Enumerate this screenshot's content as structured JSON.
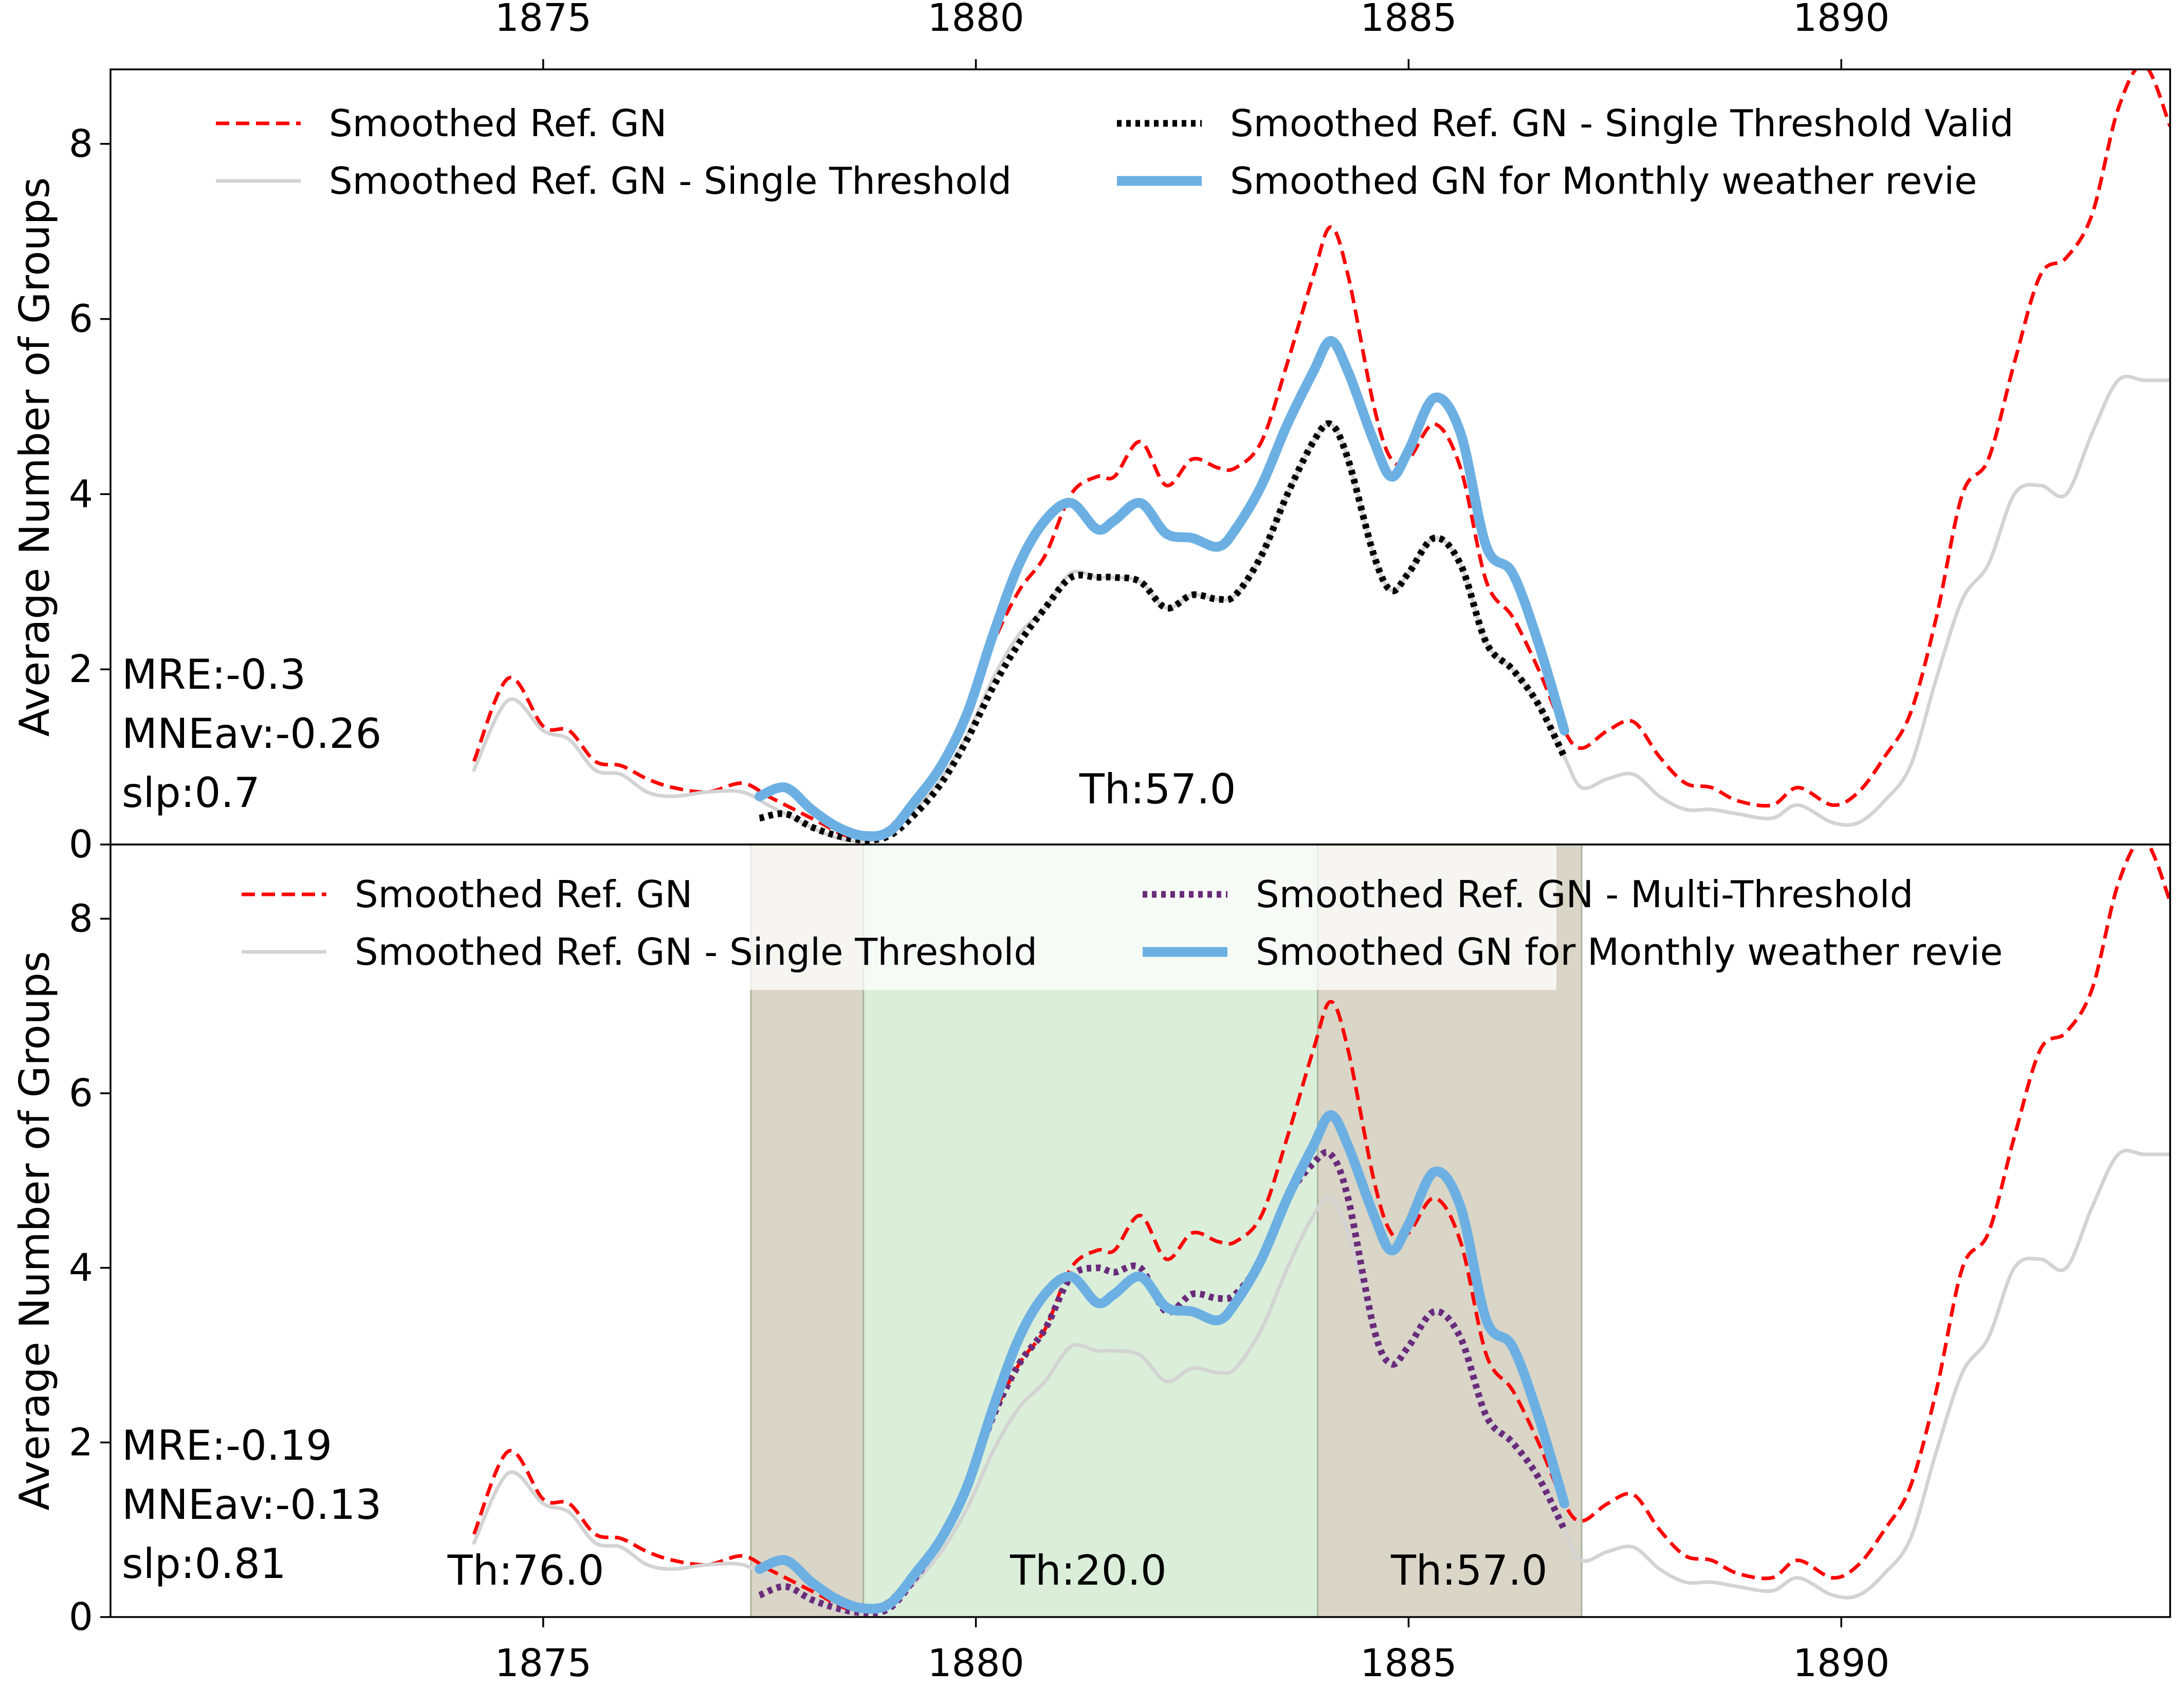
{
  "chart_data": [
    {
      "type": "line",
      "panel": "top",
      "title": "",
      "xlabel": "",
      "ylabel": "Average Number of Groups",
      "xlim": [
        1870.0,
        1893.8
      ],
      "ylim": [
        0,
        8.85
      ],
      "x_ticks": [
        1875,
        1880,
        1885,
        1890
      ],
      "y_ticks": [
        0,
        2,
        4,
        6,
        8
      ],
      "x_tick_labels": [
        "1875",
        "1880",
        "1885",
        "1890"
      ],
      "y_tick_labels": [
        "0",
        "2",
        "4",
        "6",
        "8"
      ],
      "x_ticks_position": "top",
      "legend_location": "top",
      "grid": false,
      "annotations": {
        "stats": [
          "MRE:-0.3",
          "MNEav:-0.26",
          "slp:0.7"
        ],
        "thresholds": [
          {
            "text": "Th:57.0",
            "x": 1882.1
          }
        ]
      },
      "shaded_regions": [],
      "series": [
        {
          "name": "Smoothed Ref. GN",
          "color": "#ff0000",
          "style": "dashed",
          "x": [
            1874.2,
            1874.6,
            1875.0,
            1875.3,
            1875.6,
            1875.9,
            1876.2,
            1876.5,
            1876.9,
            1877.3,
            1877.6,
            1877.9,
            1878.2,
            1878.5,
            1878.8,
            1879.0,
            1879.3,
            1879.6,
            1879.9,
            1880.2,
            1880.5,
            1880.8,
            1881.1,
            1881.4,
            1881.6,
            1881.9,
            1882.2,
            1882.5,
            1882.8,
            1883.0,
            1883.3,
            1883.6,
            1883.9,
            1884.1,
            1884.3,
            1884.6,
            1884.8,
            1885.0,
            1885.3,
            1885.6,
            1885.9,
            1886.2,
            1886.5,
            1886.8,
            1887.0,
            1887.3,
            1887.6,
            1887.9,
            1888.2,
            1888.5,
            1888.8,
            1889.2,
            1889.5,
            1889.9,
            1890.2,
            1890.5,
            1890.8,
            1891.1,
            1891.4,
            1891.7,
            1892.0,
            1892.3,
            1892.6,
            1892.9,
            1893.2,
            1893.5,
            1893.8
          ],
          "y": [
            0.95,
            1.9,
            1.35,
            1.3,
            0.95,
            0.9,
            0.75,
            0.65,
            0.6,
            0.7,
            0.55,
            0.4,
            0.25,
            0.1,
            0.1,
            0.2,
            0.5,
            0.9,
            1.5,
            2.3,
            2.9,
            3.3,
            4.0,
            4.2,
            4.2,
            4.6,
            4.1,
            4.4,
            4.3,
            4.3,
            4.6,
            5.5,
            6.5,
            7.05,
            6.5,
            5.0,
            4.4,
            4.4,
            4.8,
            4.3,
            3.0,
            2.6,
            2.0,
            1.3,
            1.1,
            1.3,
            1.4,
            1.0,
            0.7,
            0.65,
            0.5,
            0.45,
            0.65,
            0.45,
            0.6,
            1.0,
            1.5,
            2.6,
            4.0,
            4.4,
            5.5,
            6.5,
            6.7,
            7.2,
            8.4,
            8.9,
            8.2
          ]
        },
        {
          "name": "Smoothed Ref. GN - Single Threshold",
          "color": "#d3d3d3",
          "style": "solid",
          "x": [
            1874.2,
            1874.6,
            1875.0,
            1875.3,
            1875.6,
            1875.9,
            1876.2,
            1876.5,
            1876.9,
            1877.3,
            1877.6,
            1877.9,
            1878.2,
            1878.5,
            1878.8,
            1879.0,
            1879.3,
            1879.6,
            1879.9,
            1880.2,
            1880.5,
            1880.8,
            1881.1,
            1881.4,
            1881.6,
            1881.9,
            1882.2,
            1882.5,
            1882.8,
            1883.0,
            1883.3,
            1883.6,
            1883.9,
            1884.1,
            1884.3,
            1884.6,
            1884.8,
            1885.0,
            1885.3,
            1885.6,
            1885.9,
            1886.2,
            1886.5,
            1886.8,
            1887.0,
            1887.3,
            1887.6,
            1887.9,
            1888.2,
            1888.5,
            1888.8,
            1889.2,
            1889.5,
            1889.9,
            1890.2,
            1890.5,
            1890.8,
            1891.1,
            1891.4,
            1891.7,
            1892.0,
            1892.3,
            1892.6,
            1892.9,
            1893.2,
            1893.5,
            1893.8
          ],
          "y": [
            0.85,
            1.65,
            1.3,
            1.2,
            0.85,
            0.8,
            0.6,
            0.55,
            0.6,
            0.6,
            0.45,
            0.3,
            0.15,
            0.05,
            0.05,
            0.15,
            0.4,
            0.75,
            1.25,
            1.9,
            2.4,
            2.7,
            3.1,
            3.05,
            3.05,
            3.0,
            2.7,
            2.85,
            2.8,
            2.85,
            3.3,
            4.0,
            4.6,
            4.8,
            4.4,
            3.3,
            2.9,
            3.1,
            3.5,
            3.2,
            2.3,
            2.0,
            1.6,
            1.0,
            0.65,
            0.75,
            0.8,
            0.55,
            0.4,
            0.4,
            0.35,
            0.3,
            0.45,
            0.25,
            0.25,
            0.5,
            0.9,
            1.9,
            2.8,
            3.2,
            4.0,
            4.1,
            4.0,
            4.7,
            5.3,
            5.3,
            5.3
          ]
        },
        {
          "name": "Smoothed Ref. GN - Single Threshold Valid",
          "color": "#000000",
          "style": "dotted",
          "x": [
            1877.5,
            1877.8,
            1878.1,
            1878.4,
            1878.7,
            1879.0,
            1879.3,
            1879.6,
            1879.9,
            1880.2,
            1880.5,
            1880.8,
            1881.1,
            1881.4,
            1881.6,
            1881.9,
            1882.2,
            1882.5,
            1882.8,
            1883.0,
            1883.3,
            1883.6,
            1883.9,
            1884.1,
            1884.3,
            1884.6,
            1884.8,
            1885.0,
            1885.3,
            1885.6,
            1885.9,
            1886.2,
            1886.5,
            1886.8
          ],
          "y": [
            0.3,
            0.35,
            0.2,
            0.1,
            0.05,
            0.1,
            0.35,
            0.7,
            1.2,
            1.8,
            2.3,
            2.7,
            3.05,
            3.05,
            3.05,
            3.0,
            2.7,
            2.85,
            2.8,
            2.85,
            3.3,
            4.0,
            4.6,
            4.8,
            4.4,
            3.3,
            2.9,
            3.1,
            3.5,
            3.2,
            2.3,
            2.0,
            1.6,
            1.0
          ]
        },
        {
          "name": "Smoothed GN for Monthly weather revie",
          "color": "#6cb0e3",
          "style": "solid-thick",
          "x": [
            1877.5,
            1877.8,
            1878.1,
            1878.4,
            1878.7,
            1879.0,
            1879.3,
            1879.6,
            1879.9,
            1880.2,
            1880.5,
            1880.8,
            1881.1,
            1881.4,
            1881.6,
            1881.9,
            1882.2,
            1882.5,
            1882.8,
            1883.0,
            1883.3,
            1883.6,
            1883.9,
            1884.1,
            1884.3,
            1884.6,
            1884.8,
            1885.0,
            1885.3,
            1885.6,
            1885.9,
            1886.2,
            1886.5,
            1886.8
          ],
          "y": [
            0.55,
            0.65,
            0.4,
            0.2,
            0.1,
            0.15,
            0.5,
            0.9,
            1.5,
            2.4,
            3.2,
            3.7,
            3.9,
            3.6,
            3.7,
            3.9,
            3.55,
            3.5,
            3.4,
            3.6,
            4.1,
            4.8,
            5.4,
            5.75,
            5.4,
            4.6,
            4.2,
            4.5,
            5.1,
            4.7,
            3.4,
            3.1,
            2.3,
            1.3
          ]
        }
      ]
    },
    {
      "type": "line",
      "panel": "bottom",
      "title": "",
      "xlabel": "",
      "ylabel": "Average Number of Groups",
      "xlim": [
        1870.0,
        1893.8
      ],
      "ylim": [
        0,
        8.85
      ],
      "x_ticks": [
        1875,
        1880,
        1885,
        1890
      ],
      "y_ticks": [
        0,
        2,
        4,
        6,
        8
      ],
      "x_tick_labels": [
        "1875",
        "1880",
        "1885",
        "1890"
      ],
      "y_tick_labels": [
        "0",
        "2",
        "4",
        "6",
        "8"
      ],
      "x_ticks_position": "bottom",
      "legend_location": "top",
      "grid": false,
      "annotations": {
        "stats": [
          "MRE:-0.19",
          "MNEav:-0.13",
          "slp:0.81"
        ],
        "thresholds": [
          {
            "text": "Th:76.0",
            "x": 1874.8
          },
          {
            "text": "Th:20.0",
            "x": 1881.3
          },
          {
            "text": "Th:57.0",
            "x": 1885.7
          }
        ]
      },
      "shaded_regions": [
        {
          "x0": 1877.4,
          "x1": 1878.7,
          "color": "#d9d5c7"
        },
        {
          "x0": 1878.7,
          "x1": 1883.95,
          "color": "#daeeda"
        },
        {
          "x0": 1883.95,
          "x1": 1887.0,
          "color": "#d9d5c7"
        }
      ],
      "series": [
        {
          "name": "Smoothed Ref. GN",
          "color": "#ff0000",
          "style": "dashed",
          "x": [
            1874.2,
            1874.6,
            1875.0,
            1875.3,
            1875.6,
            1875.9,
            1876.2,
            1876.5,
            1876.9,
            1877.3,
            1877.6,
            1877.9,
            1878.2,
            1878.5,
            1878.8,
            1879.0,
            1879.3,
            1879.6,
            1879.9,
            1880.2,
            1880.5,
            1880.8,
            1881.1,
            1881.4,
            1881.6,
            1881.9,
            1882.2,
            1882.5,
            1882.8,
            1883.0,
            1883.3,
            1883.6,
            1883.9,
            1884.1,
            1884.3,
            1884.6,
            1884.8,
            1885.0,
            1885.3,
            1885.6,
            1885.9,
            1886.2,
            1886.5,
            1886.8,
            1887.0,
            1887.3,
            1887.6,
            1887.9,
            1888.2,
            1888.5,
            1888.8,
            1889.2,
            1889.5,
            1889.9,
            1890.2,
            1890.5,
            1890.8,
            1891.1,
            1891.4,
            1891.7,
            1892.0,
            1892.3,
            1892.6,
            1892.9,
            1893.2,
            1893.5,
            1893.8
          ],
          "y": [
            0.95,
            1.9,
            1.35,
            1.3,
            0.95,
            0.9,
            0.75,
            0.65,
            0.6,
            0.7,
            0.55,
            0.4,
            0.25,
            0.1,
            0.1,
            0.2,
            0.5,
            0.9,
            1.5,
            2.3,
            2.9,
            3.3,
            4.0,
            4.2,
            4.2,
            4.6,
            4.1,
            4.4,
            4.3,
            4.3,
            4.6,
            5.5,
            6.5,
            7.05,
            6.5,
            5.0,
            4.4,
            4.4,
            4.8,
            4.3,
            3.0,
            2.6,
            2.0,
            1.3,
            1.1,
            1.3,
            1.4,
            1.0,
            0.7,
            0.65,
            0.5,
            0.45,
            0.65,
            0.45,
            0.6,
            1.0,
            1.5,
            2.6,
            4.0,
            4.4,
            5.5,
            6.5,
            6.7,
            7.2,
            8.4,
            8.9,
            8.2
          ]
        },
        {
          "name": "Smoothed Ref. GN - Single Threshold",
          "color": "#d3d3d3",
          "style": "solid",
          "x": [
            1874.2,
            1874.6,
            1875.0,
            1875.3,
            1875.6,
            1875.9,
            1876.2,
            1876.5,
            1876.9,
            1877.3,
            1877.6,
            1877.9,
            1878.2,
            1878.5,
            1878.8,
            1879.0,
            1879.3,
            1879.6,
            1879.9,
            1880.2,
            1880.5,
            1880.8,
            1881.1,
            1881.4,
            1881.6,
            1881.9,
            1882.2,
            1882.5,
            1882.8,
            1883.0,
            1883.3,
            1883.6,
            1883.9,
            1884.1,
            1884.3,
            1884.6,
            1884.8,
            1885.0,
            1885.3,
            1885.6,
            1885.9,
            1886.2,
            1886.5,
            1886.8,
            1887.0,
            1887.3,
            1887.6,
            1887.9,
            1888.2,
            1888.5,
            1888.8,
            1889.2,
            1889.5,
            1889.9,
            1890.2,
            1890.5,
            1890.8,
            1891.1,
            1891.4,
            1891.7,
            1892.0,
            1892.3,
            1892.6,
            1892.9,
            1893.2,
            1893.5,
            1893.8
          ],
          "y": [
            0.85,
            1.65,
            1.3,
            1.2,
            0.85,
            0.8,
            0.6,
            0.55,
            0.6,
            0.6,
            0.45,
            0.3,
            0.15,
            0.05,
            0.05,
            0.15,
            0.4,
            0.75,
            1.25,
            1.9,
            2.4,
            2.7,
            3.1,
            3.05,
            3.05,
            3.0,
            2.7,
            2.85,
            2.8,
            2.85,
            3.3,
            4.0,
            4.6,
            4.8,
            4.4,
            3.3,
            2.9,
            3.1,
            3.5,
            3.2,
            2.3,
            2.0,
            1.6,
            1.0,
            0.65,
            0.75,
            0.8,
            0.55,
            0.4,
            0.4,
            0.35,
            0.3,
            0.45,
            0.25,
            0.25,
            0.5,
            0.9,
            1.9,
            2.8,
            3.2,
            4.0,
            4.1,
            4.0,
            4.7,
            5.3,
            5.3,
            5.3
          ]
        },
        {
          "name": "Smoothed Ref. GN - Multi-Threshold",
          "color": "#6a2c7a",
          "style": "dotted",
          "x": [
            1877.5,
            1877.8,
            1878.1,
            1878.4,
            1878.7,
            1879.0,
            1879.3,
            1879.6,
            1879.9,
            1880.2,
            1880.5,
            1880.8,
            1881.1,
            1881.4,
            1881.6,
            1881.9,
            1882.2,
            1882.5,
            1882.8,
            1883.0,
            1883.3,
            1883.6,
            1883.9,
            1884.1,
            1884.3,
            1884.6,
            1884.8,
            1885.0,
            1885.3,
            1885.6,
            1885.9,
            1886.2,
            1886.5,
            1886.8
          ],
          "y": [
            0.25,
            0.35,
            0.2,
            0.1,
            0.05,
            0.1,
            0.45,
            0.9,
            1.5,
            2.3,
            2.9,
            3.3,
            3.9,
            4.0,
            3.95,
            4.0,
            3.5,
            3.7,
            3.65,
            3.7,
            4.1,
            4.8,
            5.2,
            5.3,
            4.8,
            3.3,
            2.9,
            3.1,
            3.5,
            3.2,
            2.3,
            2.0,
            1.6,
            1.0
          ]
        },
        {
          "name": "Smoothed GN for Monthly weather revie",
          "color": "#6cb0e3",
          "style": "solid-thick",
          "x": [
            1877.5,
            1877.8,
            1878.1,
            1878.4,
            1878.7,
            1879.0,
            1879.3,
            1879.6,
            1879.9,
            1880.2,
            1880.5,
            1880.8,
            1881.1,
            1881.4,
            1881.6,
            1881.9,
            1882.2,
            1882.5,
            1882.8,
            1883.0,
            1883.3,
            1883.6,
            1883.9,
            1884.1,
            1884.3,
            1884.6,
            1884.8,
            1885.0,
            1885.3,
            1885.6,
            1885.9,
            1886.2,
            1886.5,
            1886.8
          ],
          "y": [
            0.55,
            0.65,
            0.4,
            0.2,
            0.1,
            0.15,
            0.5,
            0.9,
            1.5,
            2.4,
            3.2,
            3.7,
            3.9,
            3.6,
            3.7,
            3.9,
            3.55,
            3.5,
            3.4,
            3.6,
            4.1,
            4.8,
            5.4,
            5.75,
            5.4,
            4.6,
            4.2,
            4.5,
            5.1,
            4.7,
            3.4,
            3.1,
            2.3,
            1.3
          ]
        }
      ]
    }
  ]
}
